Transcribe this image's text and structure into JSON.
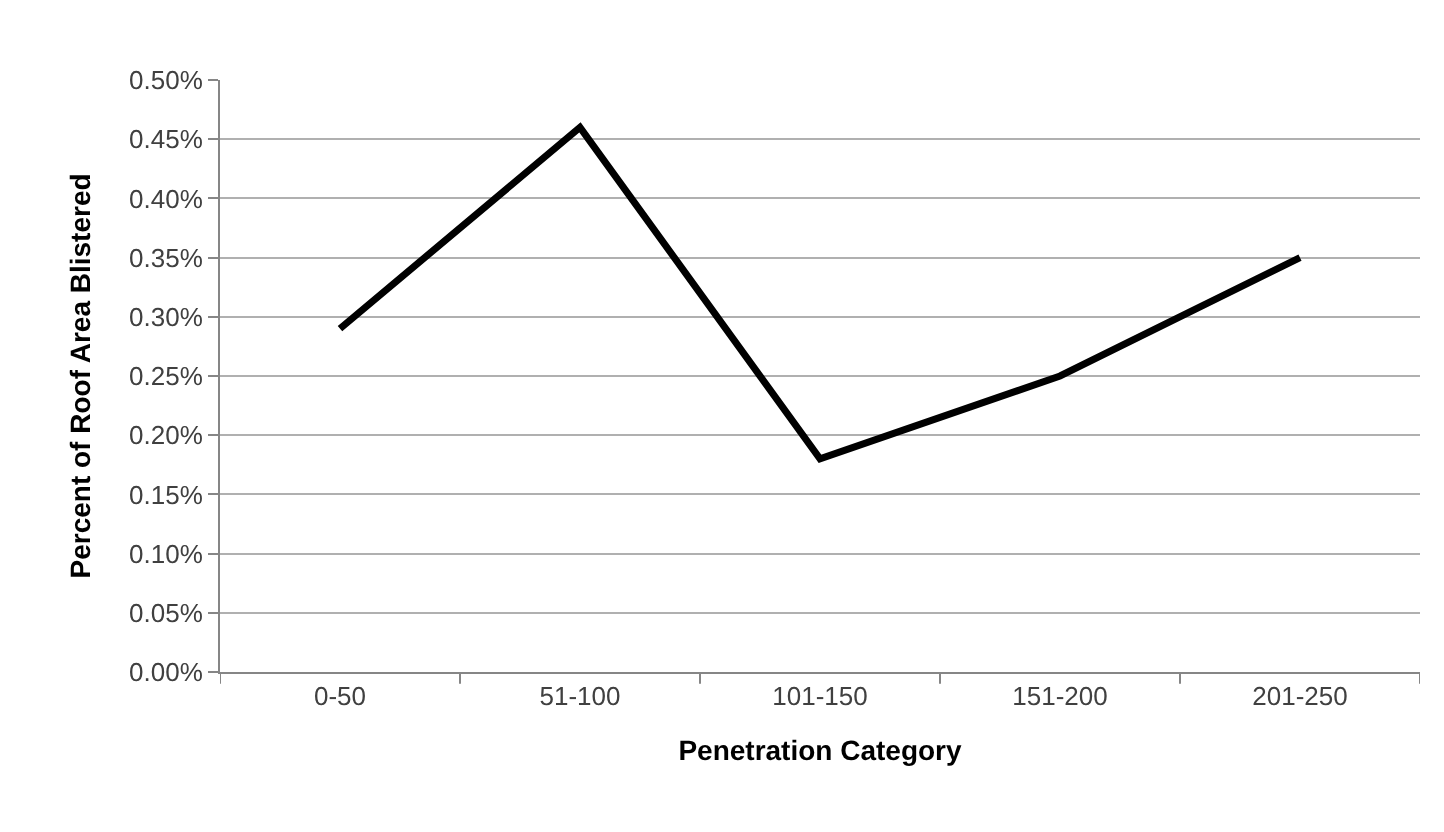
{
  "chart_data": {
    "type": "line",
    "xlabel": "Penetration Category",
    "ylabel": "Percent of Roof Area Blistered",
    "categories": [
      "0-50",
      "51-100",
      "101-150",
      "151-200",
      "201-250"
    ],
    "series": [
      {
        "color": "#000000",
        "values": [
          0.29,
          0.46,
          0.18,
          0.25,
          0.35
        ]
      }
    ],
    "ylim": [
      0,
      0.5
    ],
    "yticks": [
      {
        "value": 0,
        "label": "0.00%"
      },
      {
        "value": 0.05,
        "label": "0.05%"
      },
      {
        "value": 0.1,
        "label": "0.10%"
      },
      {
        "value": 0.15,
        "label": "0.15%"
      },
      {
        "value": 0.2,
        "label": "0.20%"
      },
      {
        "value": 0.25,
        "label": "0.25%"
      },
      {
        "value": 0.3,
        "label": "0.30%"
      },
      {
        "value": 0.35,
        "label": "0.35%"
      },
      {
        "value": 0.4,
        "label": "0.40%"
      },
      {
        "value": 0.45,
        "label": "0.45%"
      },
      {
        "value": 0.5,
        "label": "0.50%"
      }
    ],
    "grid": "y",
    "legend": false,
    "marker": "none",
    "line_style": "solid"
  }
}
